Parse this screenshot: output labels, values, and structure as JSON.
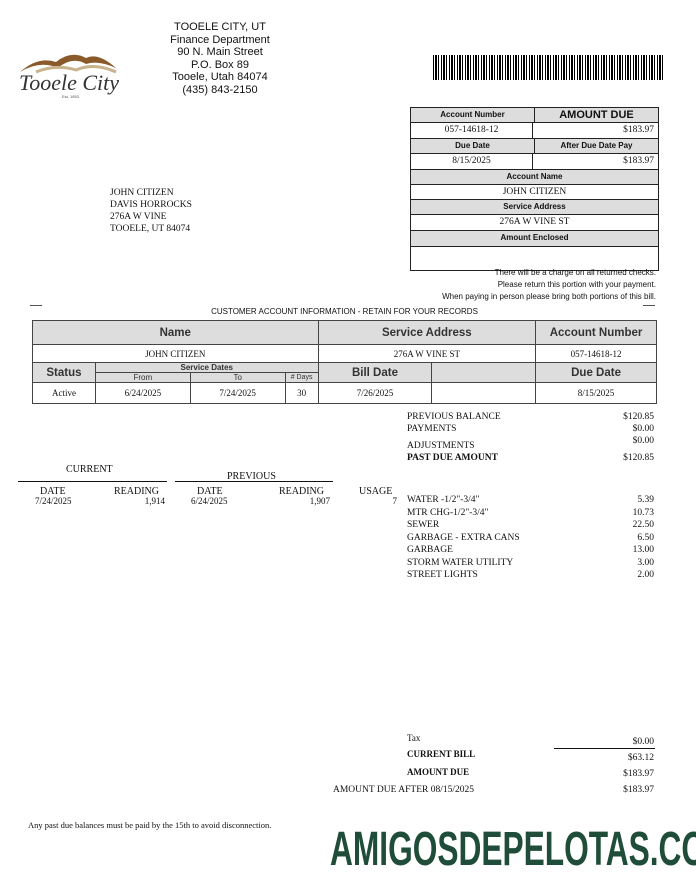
{
  "issuer": {
    "logo_text": "Tooele City",
    "logo_sub": "Est. 1853",
    "name": "TOOELE CITY, UT",
    "dept": "Finance Department",
    "street": "90 N. Main Street",
    "pobox": "P.O. Box 89",
    "city": "Tooele, Utah 84074",
    "phone": "(435) 843-2150"
  },
  "remit": {
    "account_number_label": "Account Number",
    "account_number": "057-14618-12",
    "amount_due_label": "AMOUNT DUE",
    "amount_due": "$183.97",
    "due_date_label": "Due Date",
    "due_date": "8/15/2025",
    "after_due_label": "After Due Date Pay",
    "after_due": "$183.97",
    "account_name_label": "Account Name",
    "account_name": "JOHN CITIZEN",
    "service_address_label": "Service Address",
    "service_address": "276A W VINE ST",
    "amount_enclosed_label": "Amount Enclosed",
    "amount_enclosed": ""
  },
  "notes": [
    "There will be a charge on all returned checks.",
    "Please return this portion with your payment.",
    "When paying in person please bring both portions of this bill."
  ],
  "mailing": [
    "JOHN CITIZEN",
    "DAVIS HORROCKS",
    "276A W VINE",
    "TOOELE, UT 84074"
  ],
  "info": {
    "title": "CUSTOMER ACCOUNT INFORMATION - RETAIN FOR YOUR RECORDS",
    "headers": {
      "name": "Name",
      "service_address": "Service Address",
      "account_number": "Account Number",
      "status": "Status",
      "service_dates": "Service Dates",
      "from": "From",
      "to": "To",
      "days": "# Days",
      "bill_date": "Bill Date",
      "due_date": "Due Date"
    },
    "values": {
      "name": "JOHN CITIZEN",
      "service_address": "276A W VINE ST",
      "account_number": "057-14618-12",
      "status": "Active",
      "from": "6/24/2025",
      "to": "7/24/2025",
      "days": "30",
      "bill_date": "7/26/2025",
      "blank": "",
      "due_date": "8/15/2025"
    }
  },
  "balances": [
    {
      "label": "PREVIOUS BALANCE",
      "value": "$120.85"
    },
    {
      "label": "PAYMENTS",
      "value": "$0.00"
    },
    {
      "label": "ADJUSTMENTS",
      "value": "$0.00"
    },
    {
      "label": "PAST DUE AMOUNT",
      "value": "$120.85"
    }
  ],
  "meter": {
    "current_label": "CURRENT",
    "previous_label": "PREVIOUS",
    "date_label": "DATE",
    "reading_label": "READING",
    "usage_label": "USAGE",
    "current_date": "7/24/2025",
    "current_reading": "1,914",
    "previous_date": "6/24/2025",
    "previous_reading": "1,907",
    "usage": "7"
  },
  "charges": [
    {
      "label": "WATER -1/2\"-3/4\"",
      "value": "5.39"
    },
    {
      "label": "MTR  CHG-1/2\"-3/4\"",
      "value": "10.73"
    },
    {
      "label": "SEWER",
      "value": "22.50"
    },
    {
      "label": "GARBAGE - EXTRA CANS",
      "value": "6.50"
    },
    {
      "label": "GARBAGE",
      "value": "13.00"
    },
    {
      "label": "STORM WATER UTILITY",
      "value": "3.00"
    },
    {
      "label": "STREET LIGHTS",
      "value": "2.00"
    }
  ],
  "totals": {
    "tax_label": "Tax",
    "tax": "$0.00",
    "current_bill_label": "CURRENT BILL",
    "current_bill": "$63.12",
    "amount_due_label": "AMOUNT DUE",
    "amount_due": "$183.97",
    "after_label": "AMOUNT DUE AFTER 08/15/2025",
    "after": "$183.97"
  },
  "footer_note": "Any past due balances must be paid by the 15th to avoid disconnection.",
  "watermark": "AMIGOSDEPELOTAS.COM",
  "colors": {
    "watermark": "#1f4d3a",
    "header_fill": "#dddddd",
    "logo_brown": "#8a5a2b"
  }
}
